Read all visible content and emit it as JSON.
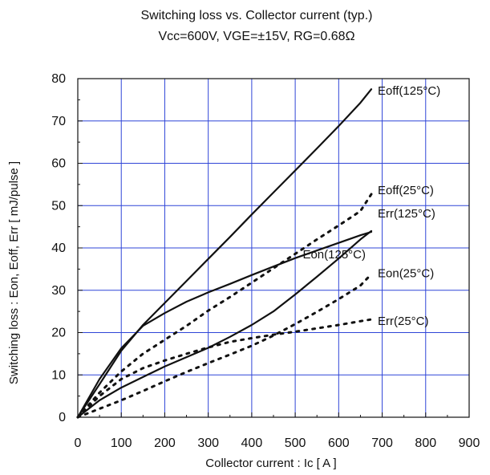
{
  "chart_data": {
    "type": "line",
    "title": "Switching loss vs. Collector current (typ.)",
    "subtitle": "Vcc=600V, VGE=±15V, RG=0.68Ω",
    "xlabel": "Collector current : Ic [ A ]",
    "ylabel": "Switching loss : Eon, Eoff, Err [ mJ/pulse ]",
    "xlim": [
      0,
      900
    ],
    "ylim": [
      0,
      80
    ],
    "xticks": [
      0,
      100,
      200,
      300,
      400,
      500,
      600,
      700,
      800,
      900
    ],
    "yticks": [
      0,
      10,
      20,
      30,
      40,
      50,
      60,
      70,
      80
    ],
    "xtick_labels": [
      "0",
      "100",
      "200",
      "300",
      "400",
      "500",
      "600",
      "700",
      "800",
      "900"
    ],
    "ytick_labels": [
      "0",
      "10",
      "20",
      "30",
      "40",
      "50",
      "60",
      "70",
      "80"
    ],
    "grid": true,
    "series": [
      {
        "name": "Eoff(125°C)",
        "style": "solid",
        "x": [
          0,
          50,
          100,
          150,
          200,
          250,
          300,
          350,
          400,
          450,
          500,
          550,
          600,
          650,
          675
        ],
        "y": [
          0,
          7.8,
          15.7,
          21.8,
          27.0,
          32.2,
          37.4,
          42.6,
          47.9,
          53.1,
          58.3,
          63.5,
          68.8,
          74.3,
          77.5
        ]
      },
      {
        "name": "Eoff(25°C)",
        "style": "dotted",
        "x": [
          0,
          50,
          100,
          150,
          200,
          250,
          300,
          350,
          400,
          450,
          500,
          550,
          600,
          650,
          675
        ],
        "y": [
          0,
          5.8,
          10.8,
          15.0,
          18.3,
          21.6,
          25.2,
          28.4,
          31.8,
          35.2,
          38.6,
          42.0,
          45.3,
          48.7,
          52.7
        ]
      },
      {
        "name": "Err(125°C)",
        "style": "solid",
        "x": [
          0,
          50,
          100,
          150,
          200,
          250,
          300,
          350,
          400,
          450,
          500,
          550,
          600,
          650,
          675
        ],
        "y": [
          0,
          9.0,
          16.3,
          21.6,
          24.6,
          27.3,
          29.5,
          31.5,
          33.6,
          35.6,
          37.6,
          39.4,
          41.2,
          43.0,
          43.8
        ]
      },
      {
        "name": "Eon(125°C)",
        "style": "solid",
        "x": [
          0,
          50,
          100,
          150,
          200,
          250,
          300,
          350,
          400,
          450,
          500,
          550,
          600,
          650,
          675
        ],
        "y": [
          0,
          4.0,
          7.0,
          9.5,
          12.0,
          14.2,
          16.4,
          19.0,
          21.8,
          25.0,
          29.0,
          33.2,
          37.5,
          42.0,
          44.0
        ]
      },
      {
        "name": "Eon(25°C)",
        "style": "dotted",
        "x": [
          0,
          50,
          100,
          150,
          200,
          250,
          300,
          350,
          400,
          450,
          500,
          550,
          600,
          650,
          675
        ],
        "y": [
          0,
          2.0,
          4.0,
          6.2,
          8.5,
          10.7,
          12.8,
          14.8,
          16.9,
          19.3,
          22.0,
          24.9,
          27.9,
          31.1,
          33.8
        ]
      },
      {
        "name": "Err(25°C)",
        "style": "dotted",
        "x": [
          0,
          50,
          100,
          150,
          200,
          250,
          300,
          350,
          400,
          450,
          500,
          550,
          600,
          650,
          675
        ],
        "y": [
          0,
          5.0,
          9.0,
          11.6,
          13.4,
          15.0,
          16.5,
          17.8,
          18.7,
          19.5,
          20.2,
          21.0,
          21.8,
          22.7,
          23.1
        ]
      }
    ]
  }
}
